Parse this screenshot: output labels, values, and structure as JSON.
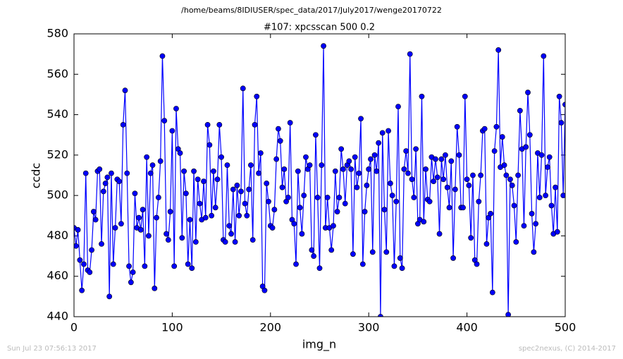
{
  "chart_data": {
    "type": "line",
    "suptitle": "/home/beams/8IDIUSER/spec_data/2017/July2017/wenge20170722",
    "title": "#107: xpcsscan 500 0.2",
    "x_label": "img_n",
    "y_label": "ccdc",
    "footer_left": "Sun Jul 23 07:56:13 2017",
    "footer_right": "spec2nexus, (C) 2014-2017",
    "xlim": [
      0,
      500
    ],
    "ylim": [
      440,
      580
    ],
    "xticks": [
      0,
      100,
      200,
      300,
      400,
      500
    ],
    "yticks": [
      440,
      460,
      480,
      500,
      520,
      540,
      560,
      580
    ],
    "series": [
      {
        "color": "#0000ff",
        "x": [
          0,
          2,
          4,
          6,
          8,
          10,
          12,
          14,
          16,
          18,
          20,
          22,
          24,
          26,
          28,
          30,
          32,
          34,
          36,
          38,
          40,
          42,
          44,
          46,
          48,
          50,
          52,
          54,
          56,
          58,
          60,
          62,
          64,
          66,
          68,
          70,
          72,
          74,
          76,
          78,
          80,
          82,
          84,
          86,
          88,
          90,
          92,
          94,
          96,
          98,
          100,
          102,
          104,
          106,
          108,
          110,
          112,
          114,
          116,
          118,
          120,
          122,
          124,
          126,
          128,
          130,
          132,
          134,
          136,
          138,
          140,
          142,
          144,
          146,
          148,
          150,
          152,
          154,
          156,
          158,
          160,
          162,
          164,
          166,
          168,
          170,
          172,
          174,
          176,
          178,
          180,
          182,
          184,
          186,
          188,
          190,
          192,
          194,
          196,
          198,
          200,
          202,
          204,
          206,
          208,
          210,
          212,
          214,
          216,
          218,
          220,
          222,
          224,
          226,
          228,
          230,
          232,
          234,
          236,
          238,
          240,
          242,
          244,
          246,
          248,
          250,
          252,
          254,
          256,
          258,
          260,
          262,
          264,
          266,
          268,
          270,
          272,
          274,
          276,
          278,
          280,
          282,
          284,
          286,
          288,
          290,
          292,
          294,
          296,
          298,
          300,
          302,
          304,
          306,
          308,
          310,
          312,
          314,
          316,
          318,
          320,
          322,
          324,
          326,
          328,
          330,
          332,
          334,
          336,
          338,
          340,
          342,
          344,
          346,
          348,
          350,
          352,
          354,
          356,
          358,
          360,
          362,
          364,
          366,
          368,
          370,
          372,
          374,
          376,
          378,
          380,
          382,
          384,
          386,
          388,
          390,
          392,
          394,
          396,
          398,
          400,
          402,
          404,
          406,
          408,
          410,
          412,
          414,
          416,
          418,
          420,
          422,
          424,
          426,
          428,
          430,
          432,
          434,
          436,
          438,
          440,
          442,
          444,
          446,
          448,
          450,
          452,
          454,
          456,
          458,
          460,
          462,
          464,
          466,
          468,
          470,
          472,
          474,
          476,
          478,
          480,
          482,
          484,
          486,
          488,
          490,
          492,
          494,
          496,
          498,
          500
        ],
        "values": [
          484,
          475,
          483,
          468,
          453,
          466,
          511,
          463,
          462,
          473,
          492,
          488,
          512,
          513,
          476,
          502,
          506,
          509,
          450,
          511,
          466,
          484,
          508,
          507,
          486,
          535,
          552,
          511,
          465,
          457,
          462,
          501,
          484,
          489,
          483,
          493,
          465,
          519,
          480,
          511,
          515,
          454,
          489,
          499,
          517,
          569,
          537,
          481,
          478,
          492,
          532,
          465,
          543,
          523,
          521,
          479,
          512,
          501,
          466,
          488,
          464,
          512,
          477,
          508,
          496,
          488,
          507,
          489,
          535,
          525,
          490,
          512,
          494,
          508,
          535,
          519,
          478,
          477,
          515,
          485,
          481,
          503,
          477,
          505,
          490,
          502,
          553,
          496,
          490,
          503,
          515,
          478,
          535,
          549,
          511,
          521,
          455,
          453,
          506,
          497,
          485,
          484,
          493,
          518,
          533,
          527,
          504,
          513,
          497,
          499,
          536,
          488,
          486,
          466,
          512,
          494,
          481,
          500,
          519,
          513,
          515,
          473,
          470,
          530,
          499,
          464,
          515,
          574,
          484,
          499,
          484,
          473,
          485,
          512,
          492,
          499,
          523,
          513,
          496,
          515,
          517,
          513,
          471,
          519,
          504,
          511,
          538,
          466,
          492,
          505,
          513,
          518,
          472,
          520,
          512,
          526,
          440,
          531,
          493,
          472,
          532,
          506,
          500,
          465,
          497,
          544,
          469,
          464,
          513,
          522,
          511,
          570,
          508,
          499,
          523,
          486,
          488,
          549,
          487,
          513,
          498,
          497,
          519,
          507,
          518,
          509,
          481,
          518,
          508,
          520,
          504,
          494,
          517,
          469,
          503,
          534,
          520,
          494,
          494,
          549,
          508,
          505,
          479,
          510,
          468,
          466,
          497,
          510,
          532,
          533,
          476,
          489,
          491,
          452,
          522,
          534,
          572,
          514,
          529,
          515,
          510,
          441,
          508,
          505,
          495,
          477,
          510,
          542,
          523,
          485,
          524,
          551,
          530,
          491,
          472,
          486,
          521,
          499,
          520,
          569,
          500,
          514,
          519,
          495,
          481,
          504,
          482,
          549,
          536,
          500,
          545
        ]
      }
    ]
  }
}
